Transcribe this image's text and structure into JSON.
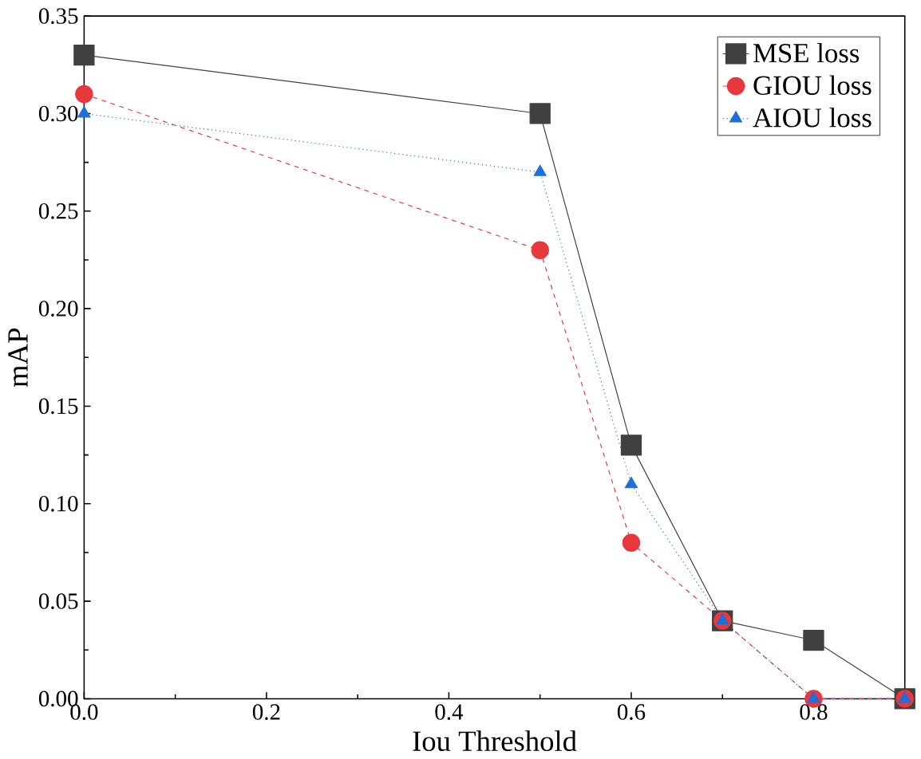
{
  "chart_data": {
    "type": "line",
    "xlabel": "Iou Threshold",
    "ylabel": "mAP",
    "x": [
      0,
      0.5,
      0.6,
      0.7,
      0.8,
      0.9
    ],
    "series": [
      {
        "name": "MSE loss",
        "color": "#404040",
        "marker": "square",
        "line_style": "solid",
        "values": [
          0.33,
          0.3,
          0.13,
          0.04,
          0.03,
          0.0
        ]
      },
      {
        "name": "GIOU loss",
        "color": "#e8383d",
        "marker": "circle",
        "line_style": "dashed",
        "values": [
          0.31,
          0.23,
          0.08,
          0.04,
          0.0,
          0.0
        ]
      },
      {
        "name": "AIOU loss",
        "color": "#1f6fd6",
        "marker": "triangle",
        "line_style": "dotted",
        "values": [
          0.3,
          0.27,
          0.11,
          0.04,
          0.0,
          0.0
        ]
      }
    ],
    "xlim": [
      0,
      0.9
    ],
    "ylim": [
      0,
      0.35
    ],
    "xticks": [
      {
        "value": 0,
        "label": "0.0"
      },
      0.2,
      0.4,
      0.6,
      0.8
    ],
    "yticks": [
      {
        "value": 0,
        "label": "0.00"
      },
      {
        "value": 0.05,
        "label": "0.05"
      },
      {
        "value": 0.1,
        "label": "0.10"
      },
      {
        "value": 0.15,
        "label": "0.15"
      },
      {
        "value": 0.2,
        "label": "0.20"
      },
      {
        "value": 0.25,
        "label": "0.25"
      },
      {
        "value": 0.3,
        "label": "0.30"
      },
      {
        "value": 0.35,
        "label": "0.35"
      }
    ],
    "grid": false,
    "legend": "top right"
  }
}
